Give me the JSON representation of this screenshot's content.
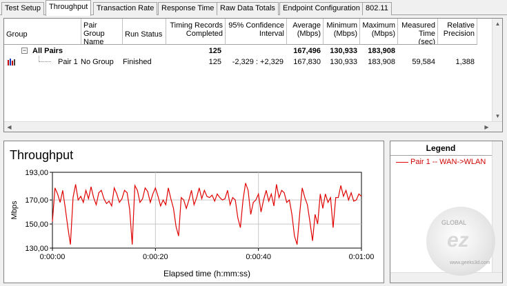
{
  "tabs": [
    "Test Setup",
    "Throughput",
    "Transaction Rate",
    "Response Time",
    "Raw Data Totals",
    "Endpoint Configuration",
    "802.11"
  ],
  "active_tab": 1,
  "table": {
    "headers": {
      "group": "Group",
      "pair_group_name_1": "Pair Group",
      "pair_group_name_2": "Name",
      "run_status": "Run Status",
      "timing_1": "Timing Records",
      "timing_2": "Completed",
      "conf_1": "95% Confidence",
      "conf_2": "Interval",
      "avg_1": "Average",
      "avg_2": "(Mbps)",
      "min_1": "Minimum",
      "min_2": "(Mbps)",
      "max_1": "Maximum",
      "max_2": "(Mbps)",
      "meas_1": "Measured",
      "meas_2": "Time (sec)",
      "rel_1": "Relative",
      "rel_2": "Precision"
    },
    "all_pairs": {
      "expander": "−",
      "label": "All Pairs",
      "timing": "125",
      "average": "167,496",
      "minimum": "130,933",
      "maximum": "183,908"
    },
    "pair1": {
      "label": "Pair 1",
      "group_name": "No Group",
      "run_status": "Finished",
      "timing": "125",
      "confidence": "-2,329 : +2,329",
      "average": "167,830",
      "minimum": "130,933",
      "maximum": "183,908",
      "measured": "59,584",
      "relative": "1,388"
    }
  },
  "chart_data": {
    "type": "line",
    "title": "Throughput",
    "xlabel": "Elapsed time (h:mm:ss)",
    "ylabel": "Mbps",
    "x_tick_labels": [
      "0:00:00",
      "0:00:20",
      "0:00:40",
      "0:01:00"
    ],
    "y_tick_labels": [
      "193,00",
      "170,00",
      "150,00",
      "130,00"
    ],
    "y_ticks": [
      193,
      170,
      150,
      130
    ],
    "ylim": [
      130,
      193
    ],
    "xlim": [
      0,
      60
    ],
    "grid": true,
    "series": [
      {
        "name": "Pair 1 -- WAN->WLAN",
        "color": "#e00000",
        "x": [
          0.0,
          0.5,
          1.0,
          1.5,
          2.0,
          2.5,
          3.0,
          3.5,
          4.0,
          4.5,
          5.0,
          5.5,
          6.0,
          6.5,
          7.0,
          7.5,
          8.0,
          8.5,
          9.0,
          9.5,
          10.0,
          10.5,
          11.0,
          11.5,
          12.0,
          12.5,
          13.0,
          13.5,
          14.0,
          14.5,
          15.0,
          15.5,
          16.0,
          16.5,
          17.0,
          17.5,
          18.0,
          18.5,
          19.0,
          19.5,
          20.0,
          20.5,
          21.0,
          21.5,
          22.0,
          22.5,
          23.0,
          23.5,
          24.0,
          24.5,
          25.0,
          25.5,
          26.0,
          26.5,
          27.0,
          27.5,
          28.0,
          28.5,
          29.0,
          29.5,
          30.0,
          30.5,
          31.0,
          31.5,
          32.0,
          32.5,
          33.0,
          33.5,
          34.0,
          34.5,
          35.0,
          35.5,
          36.0,
          36.5,
          37.0,
          37.5,
          38.0,
          38.5,
          39.0,
          39.5,
          40.0,
          40.5,
          41.0,
          41.5,
          42.0,
          42.5,
          43.0,
          43.5,
          44.0,
          44.5,
          45.0,
          45.5,
          46.0,
          46.5,
          47.0,
          47.5,
          48.0,
          48.5,
          49.0,
          49.5,
          50.0,
          50.5,
          51.0,
          51.5,
          52.0,
          52.5,
          53.0,
          53.5,
          54.0,
          54.5,
          55.0,
          55.5,
          56.0,
          56.5,
          57.0,
          57.5,
          58.0,
          58.5,
          59.0,
          59.5,
          60.0
        ],
        "values": [
          152,
          180,
          175,
          168,
          178,
          163,
          147,
          133,
          172,
          183,
          170,
          173,
          168,
          178,
          171,
          181,
          172,
          166,
          176,
          178,
          171,
          167,
          169,
          165,
          180,
          175,
          168,
          171,
          178,
          176,
          162,
          133,
          182,
          178,
          168,
          171,
          180,
          177,
          168,
          175,
          180,
          173,
          165,
          170,
          166,
          180,
          171,
          163,
          148,
          140,
          172,
          170,
          163,
          170,
          178,
          166,
          172,
          180,
          171,
          178,
          173,
          172,
          174,
          169,
          175,
          172,
          170,
          171,
          178,
          166,
          172,
          170,
          155,
          147,
          170,
          184,
          178,
          158,
          168,
          170,
          175,
          160,
          170,
          178,
          169,
          175,
          165,
          183,
          172,
          178,
          176,
          168,
          170,
          158,
          140,
          133,
          158,
          180,
          172,
          166,
          152,
          136,
          158,
          150,
          175,
          163,
          175,
          168,
          172,
          147,
          172,
          172,
          182,
          173,
          178,
          170,
          176,
          169,
          170,
          175,
          173
        ]
      }
    ]
  },
  "legend": {
    "title": "Legend",
    "item": "Pair 1 -- WAN->WLAN"
  },
  "watermark": {
    "top_text": "GLOBAL",
    "mid_text": "ez",
    "url": "www.geeks3d.com"
  }
}
